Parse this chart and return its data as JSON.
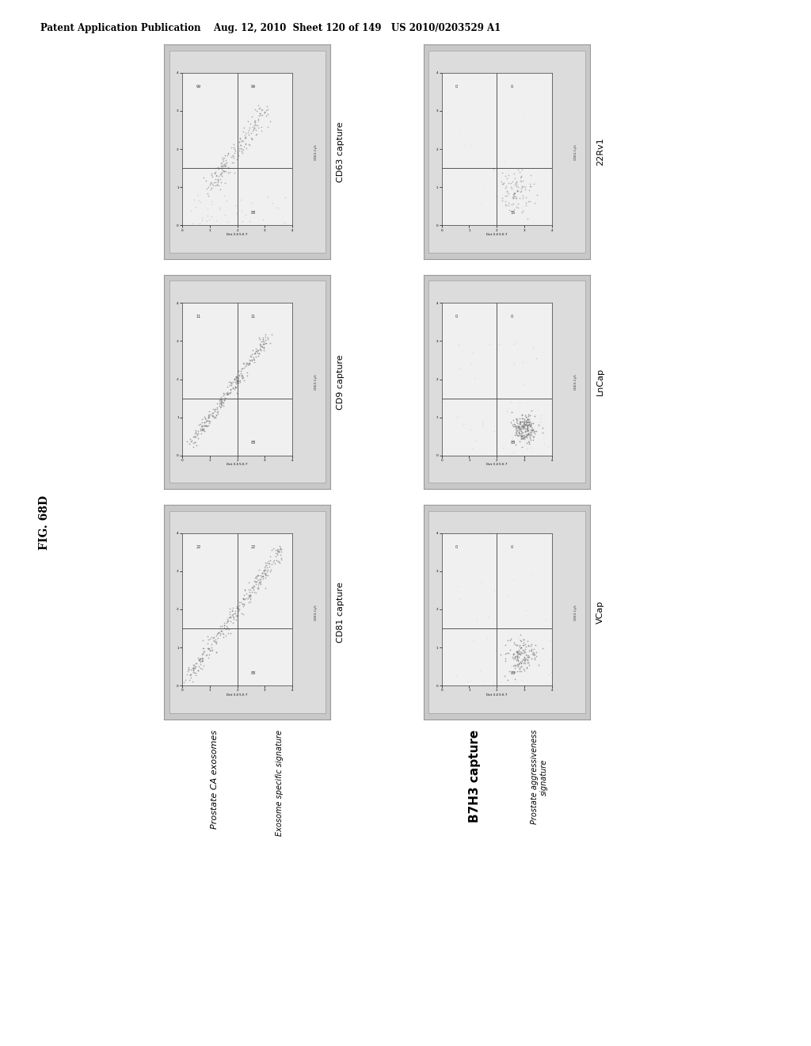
{
  "title_header": "Patent Application Publication    Aug. 12, 2010  Sheet 120 of 149   US 2010/0203529 A1",
  "fig_label": "FIG. 68D",
  "background_color": "#ffffff",
  "left_col_title": "Prostate CA exosomes",
  "left_col_subtitle": "Exosome specific signature",
  "right_col_title": "B7H3 capture",
  "right_col_subtitle": "Prostate aggressiveness\nsignature",
  "left_plots": [
    {
      "title": "CD63 capture",
      "scatter_type": "diagonal_short",
      "color": "#888888"
    },
    {
      "title": "CD9 capture",
      "scatter_type": "diagonal_medium",
      "color": "#888888"
    },
    {
      "title": "CD81 capture",
      "scatter_type": "diagonal_long",
      "color": "#888888"
    }
  ],
  "right_plots": [
    {
      "title": "22Rv1",
      "scatter_type": "cluster_sparse",
      "color": "#888888"
    },
    {
      "title": "LnCap",
      "scatter_type": "cluster_dense",
      "color": "#888888"
    },
    {
      "title": "VCap",
      "scatter_type": "cluster_medium",
      "color": "#888888"
    }
  ],
  "outer_bg": "#cccccc",
  "inner_bg": "#e8e8e8",
  "plot_bg": "#f2f2f2",
  "quadrant_line_color": "#555555",
  "header_fontsize": 8.5,
  "fig_label_fontsize": 10,
  "plot_title_fontsize": 8,
  "col_title_fontsize": 8
}
